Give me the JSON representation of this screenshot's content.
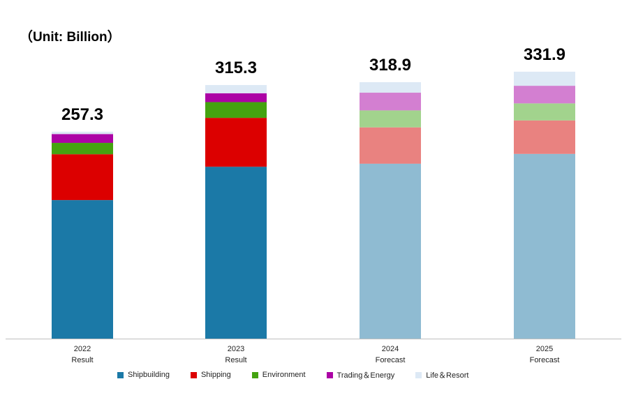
{
  "chart_data": {
    "type": "bar",
    "stacked": true,
    "unit_label": "（Unit: Billion）",
    "ylim": [
      0,
      350
    ],
    "categories": [
      {
        "year": "2022",
        "kind": "Result"
      },
      {
        "year": "2023",
        "kind": "Result"
      },
      {
        "year": "2024",
        "kind": "Forecast"
      },
      {
        "year": "2025",
        "kind": "Forecast"
      }
    ],
    "totals": [
      "257.3",
      "315.3",
      "318.9",
      "331.9"
    ],
    "total_values": [
      257.3,
      315.3,
      318.9,
      331.9
    ],
    "series": [
      {
        "name": "Shipbuilding",
        "values": [
          172.3,
          213.7,
          217.5,
          229.7
        ],
        "color": "#1b79a7",
        "forecast_color": "#8fbbd2"
      },
      {
        "name": "Shipping",
        "values": [
          57.0,
          60.8,
          45.2,
          41.6
        ],
        "color": "#dc0000",
        "forecast_color": "#e98280"
      },
      {
        "name": "Environment",
        "values": [
          14.1,
          19.6,
          21.1,
          21.2
        ],
        "color": "#44a310",
        "forecast_color": "#a2d38d"
      },
      {
        "name": "Trading＆Energy",
        "values": [
          10.9,
          11.0,
          22.0,
          21.9
        ],
        "color": "#ac03a5",
        "forecast_color": "#d37fd1"
      },
      {
        "name": "Life＆Resort",
        "values": [
          3.0,
          10.2,
          13.1,
          17.5
        ],
        "color": "#dde9f5",
        "forecast_color": "#dde9f5"
      }
    ],
    "legend_position": "bottom",
    "grid": false
  }
}
